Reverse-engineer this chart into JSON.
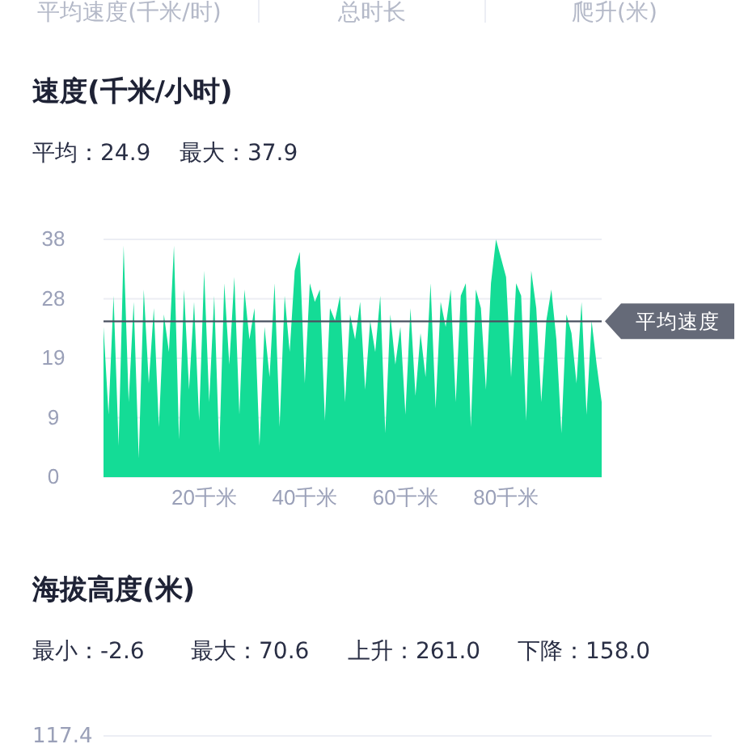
{
  "chart_data": [
    {
      "type": "area",
      "title": "速度(千米/小时)",
      "subtitle": "平均：24.9    最大：37.9",
      "annotations": [
        "平均速度(千米/时)",
        "总时长",
        "爬升(米)"
      ],
      "x": [
        0,
        1,
        2,
        3,
        4,
        5,
        6,
        7,
        8,
        9,
        10,
        11,
        12,
        13,
        14,
        15,
        16,
        17,
        18,
        19,
        20,
        21,
        22,
        23,
        24,
        25,
        26,
        27,
        28,
        29,
        30,
        31,
        32,
        33,
        34,
        35,
        36,
        37,
        38,
        39,
        40,
        41,
        42,
        43,
        44,
        45,
        46,
        47,
        48,
        49,
        50,
        51,
        52,
        53,
        54,
        55,
        56,
        57,
        58,
        59,
        60,
        61,
        62,
        63,
        64,
        65,
        66,
        67,
        68,
        69,
        70,
        71,
        72,
        73,
        74,
        75,
        76,
        77,
        78,
        79,
        80,
        81,
        82,
        83,
        84,
        85,
        86,
        87,
        88,
        89,
        90,
        91,
        92,
        93,
        94,
        95,
        96,
        97,
        98,
        99
      ],
      "series": [
        {
          "color": "#14dc96",
          "values": [
            24,
            10,
            29,
            5,
            37,
            12,
            28,
            3,
            30,
            15,
            27,
            8,
            26,
            20,
            37,
            6,
            30,
            14,
            28,
            9,
            33,
            12,
            29,
            4,
            31,
            18,
            32,
            10,
            30,
            22,
            27,
            5,
            24,
            16,
            31,
            8,
            29,
            20,
            33,
            36,
            15,
            31,
            28,
            30,
            9,
            27,
            25,
            29,
            12,
            26,
            22,
            28,
            14,
            25,
            20,
            29,
            7,
            26,
            18,
            24,
            10,
            27,
            13,
            23,
            16,
            31,
            11,
            28,
            24,
            30,
            12,
            29,
            31,
            8,
            30,
            27,
            14,
            31,
            38,
            35,
            32,
            16,
            31,
            29,
            9,
            33,
            27,
            12,
            25,
            30,
            22,
            7,
            26,
            23,
            15,
            28,
            10,
            25,
            18,
            12
          ]
        }
      ],
      "xlim": [
        0,
        99
      ],
      "xticks": [
        {
          "value": 20,
          "label": "20千米"
        },
        {
          "value": 40,
          "label": "40千米"
        },
        {
          "value": 60,
          "label": "60千米"
        },
        {
          "value": 80,
          "label": "80千米"
        }
      ],
      "ylim": [
        0,
        38
      ],
      "yticks": [
        0,
        {
          "value": 9.5,
          "label": "9"
        },
        19,
        {
          "value": 28.5,
          "label": "28"
        },
        38
      ],
      "grid": "y",
      "ref_lines": [
        {
          "axis": "y",
          "value": 24.9,
          "label": "平均速度",
          "color": "#4a5060"
        }
      ]
    },
    {
      "type": "other",
      "title": "海拔高度(米)",
      "annotations": [
        "最小：-2.6",
        "最大：70.6",
        "上升：261.0",
        "下降：158.0",
        "117.4"
      ]
    }
  ]
}
